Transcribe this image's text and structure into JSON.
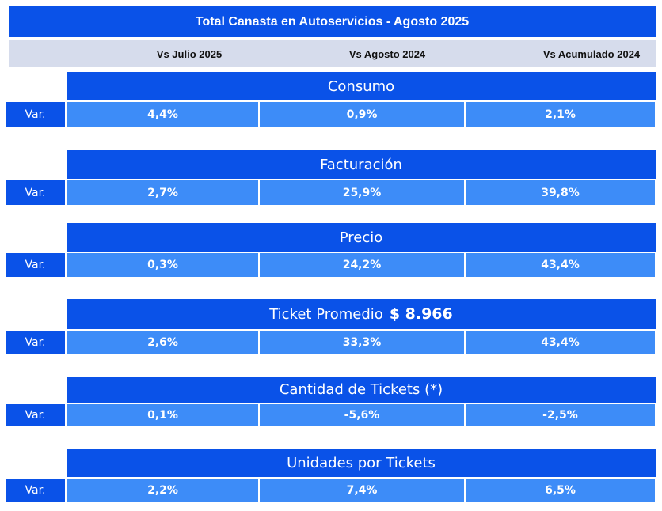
{
  "title": "Total Canasta en Autoservicios - Agosto 2025",
  "columns": [
    "Vs Julio 2025",
    "Vs Agosto 2024",
    "Vs Acumulado 2024"
  ],
  "row_label": "Var.",
  "sections": [
    {
      "name": "Consumo",
      "extra": "",
      "values": [
        "4,4%",
        "0,9%",
        "2,1%"
      ]
    },
    {
      "name": "Facturación",
      "extra": "",
      "values": [
        "2,7%",
        "25,9%",
        "39,8%"
      ]
    },
    {
      "name": "Precio",
      "extra": "",
      "values": [
        "0,3%",
        "24,2%",
        "43,4%"
      ]
    },
    {
      "name": "Ticket Promedio",
      "extra": "$ 8.966",
      "values": [
        "2,6%",
        "33,3%",
        "43,4%"
      ]
    },
    {
      "name": "Cantidad de Tickets (*)",
      "extra": "",
      "values": [
        "0,1%",
        "-5,6%",
        "-2,5%"
      ]
    },
    {
      "name": "Unidades por Tickets",
      "extra": "",
      "values": [
        "2,2%",
        "7,4%",
        "6,5%"
      ]
    }
  ],
  "colors": {
    "header_blue": "#0a52e8",
    "value_blue": "#3d8cf8",
    "subheader_gray": "#d6dcec"
  }
}
